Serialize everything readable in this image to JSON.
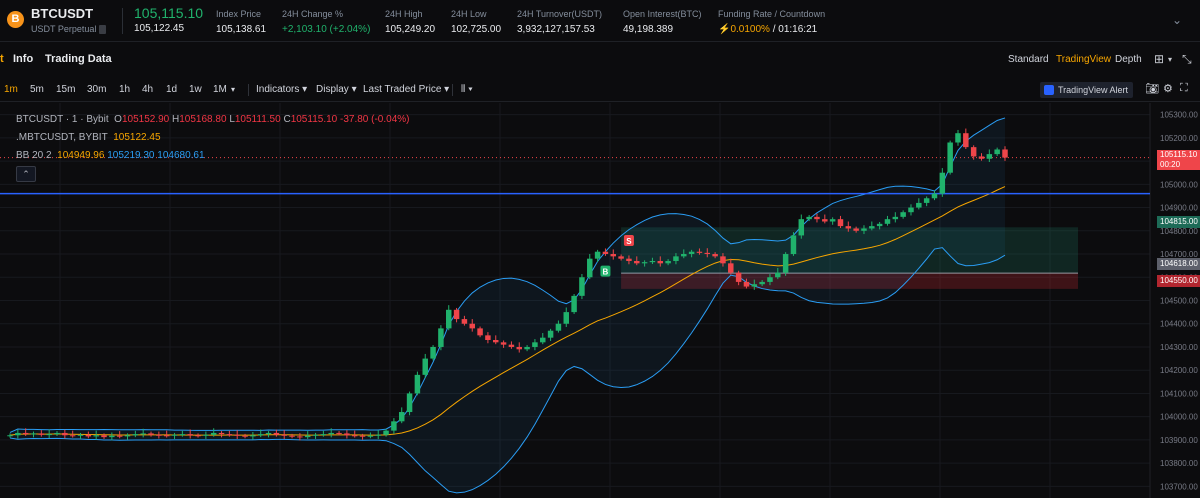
{
  "ticker": {
    "coin_letter": "B",
    "symbol": "BTCUSDT",
    "subtitle": "USDT Perpetual",
    "last_price": "105,115.10",
    "mark_price": "105,122.45",
    "stats": [
      {
        "label": "Index Price",
        "value": "105,138.61",
        "tone": "normal"
      },
      {
        "label": "24H Change %",
        "value": "+2,103.10 (+2.04%)",
        "tone": "green"
      },
      {
        "label": "24H High",
        "value": "105,249.20",
        "tone": "normal"
      },
      {
        "label": "24H Low",
        "value": "102,725.00",
        "tone": "normal"
      },
      {
        "label": "24H Turnover(USDT)",
        "value": "3,932,127,157.53",
        "tone": "normal"
      },
      {
        "label": "Open Interest(BTC)",
        "value": "49,198.389",
        "tone": "normal"
      },
      {
        "label": "Funding Rate / Countdown",
        "value_rate": "0.0100%",
        "value_countdown": " / 01:16:21",
        "tone": "mixed"
      }
    ]
  },
  "tabs": {
    "clipped_first": "t",
    "info": "Info",
    "trading_data": "Trading Data",
    "standard": "Standard",
    "tradingview": "TradingView",
    "depth": "Depth"
  },
  "toolbar": {
    "intervals": [
      "1m",
      "5m",
      "15m",
      "30m",
      "1h",
      "4h",
      "1d",
      "1w",
      "1M"
    ],
    "active_interval": "1m",
    "interval_menu": "▾",
    "indicators": "Indicators ▾",
    "display": "Display ▾",
    "price_type": "Last Traded Price ▾",
    "chart_style": "⫴ ▾",
    "alert": "TradingView Alert"
  },
  "legend": {
    "line1": {
      "name": "BTCUSDT · 1 · Bybit",
      "o_label": "O",
      "o": "105152.90",
      "h_label": "H",
      "h": "105168.80",
      "l_label": "L",
      "l": "105111.50",
      "c_label": "C",
      "c": "105115.10",
      "change": "-37.80 (-0.04%)"
    },
    "line2": {
      "name": ".MBTCUSDT, BYBIT",
      "value": "105122.45"
    },
    "line3": {
      "name": "BB 20 2",
      "basis": "104949.96",
      "upper": "105219.30",
      "lower": "104680.61"
    },
    "collapse_glyph": "⌃"
  },
  "price_tags": {
    "last": "105115.10",
    "countdown": "00:20",
    "sl": "104815.00",
    "entry": "104618.00",
    "tp": "104550.00"
  },
  "markers": {
    "sell": "S",
    "buy": "B"
  },
  "colors": {
    "up": "#20b26c",
    "down": "#ef454a",
    "bb_basis": "#f7a600",
    "bb_band": "#2a9df4",
    "hline": "#2962ff",
    "accent": "#f7a600"
  },
  "chart_data": {
    "type": "candlestick",
    "ylim": [
      103650,
      105350
    ],
    "y_ticks": [
      105300,
      105200,
      105100,
      105000,
      104900,
      104800,
      104700,
      104600,
      104500,
      104400,
      104300,
      104200,
      104100,
      104000,
      103900,
      103800,
      103700
    ],
    "y_tick_labels": [
      "105300.00",
      "105200.00",
      "105100.00",
      "105000.00",
      "104900.00",
      "104800.00",
      "104700.00",
      "104600.00",
      "104500.00",
      "104400.00",
      "104300.00",
      "104200.00",
      "104100.00",
      "104000.00",
      "103900.00",
      "103800.00",
      "103700.00"
    ],
    "horizontal_line": 104960,
    "position": {
      "entry": 104618,
      "stop": 104815,
      "target": 104550
    },
    "candles_close": [
      103920,
      103930,
      103925,
      103928,
      103922,
      103925,
      103930,
      103920,
      103918,
      103922,
      103915,
      103920,
      103912,
      103918,
      103915,
      103920,
      103925,
      103928,
      103922,
      103920,
      103918,
      103922,
      103925,
      103920,
      103918,
      103922,
      103930,
      103925,
      103922,
      103918,
      103915,
      103920,
      103925,
      103930,
      103922,
      103918,
      103915,
      103912,
      103918,
      103922,
      103925,
      103930,
      103928,
      103920,
      103918,
      103915,
      103918,
      103922,
      103940,
      103980,
      104020,
      104100,
      104180,
      104250,
      104300,
      104380,
      104460,
      104420,
      104400,
      104380,
      104350,
      104330,
      104320,
      104310,
      104300,
      104290,
      104300,
      104320,
      104340,
      104370,
      104400,
      104450,
      104520,
      104600,
      104680,
      104710,
      104700,
      104690,
      104680,
      104670,
      104660,
      104665,
      104670,
      104660,
      104670,
      104690,
      104700,
      104710,
      104705,
      104700,
      104690,
      104660,
      104620,
      104580,
      104560,
      104570,
      104580,
      104600,
      104620,
      104700,
      104780,
      104850,
      104860,
      104850,
      104840,
      104850,
      104820,
      104810,
      104800,
      104810,
      104820,
      104830,
      104850,
      104860,
      104880,
      104900,
      104920,
      104940,
      104960,
      105050,
      105180,
      105220,
      105160,
      105120,
      105110,
      105130,
      105150,
      105115
    ],
    "candles_open": [
      103918,
      103920,
      103930,
      103925,
      103928,
      103922,
      103925,
      103930,
      103920,
      103918,
      103922,
      103915,
      103920,
      103912,
      103918,
      103915,
      103920,
      103925,
      103928,
      103922,
      103920,
      103918,
      103922,
      103925,
      103920,
      103918,
      103922,
      103930,
      103925,
      103922,
      103918,
      103915,
      103920,
      103925,
      103930,
      103922,
      103918,
      103915,
      103912,
      103918,
      103922,
      103925,
      103930,
      103928,
      103920,
      103918,
      103915,
      103918,
      103922,
      103940,
      103980,
      104020,
      104100,
      104180,
      104250,
      104300,
      104380,
      104460,
      104420,
      104400,
      104380,
      104350,
      104330,
      104320,
      104310,
      104300,
      104290,
      104300,
      104320,
      104340,
      104370,
      104400,
      104450,
      104520,
      104600,
      104680,
      104710,
      104700,
      104690,
      104680,
      104670,
      104660,
      104665,
      104670,
      104660,
      104670,
      104690,
      104700,
      104710,
      104705,
      104700,
      104690,
      104660,
      104620,
      104580,
      104560,
      104570,
      104580,
      104600,
      104620,
      104700,
      104780,
      104850,
      104860,
      104850,
      104840,
      104850,
      104820,
      104810,
      104800,
      104810,
      104820,
      104830,
      104850,
      104860,
      104880,
      104900,
      104920,
      104940,
      104960,
      105050,
      105180,
      105220,
      105160,
      105120,
      105110,
      105130,
      105150
    ]
  }
}
